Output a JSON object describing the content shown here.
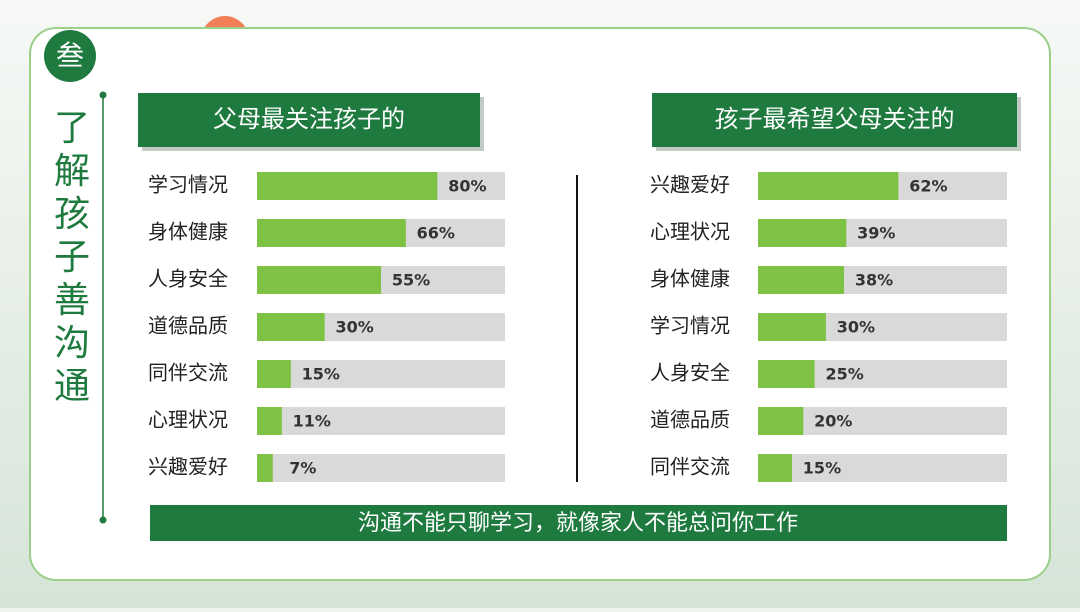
{
  "badge": "叁",
  "side_title": "了解孩子善沟通",
  "footer": "沟通不能只聊学习，就像家人不能总问你工作",
  "chart_data": [
    {
      "type": "hbar",
      "title": "父母最关注孩子的",
      "categories": [
        "学习情况",
        "身体健康",
        "人身安全",
        "道德品质",
        "同伴交流",
        "心理状况",
        "兴趣爱好"
      ],
      "values": [
        80,
        66,
        55,
        30,
        15,
        11,
        7
      ],
      "value_labels": [
        "80%",
        "66%",
        "55%",
        "30%",
        "15%",
        "11%",
        "7%"
      ],
      "color": "#7dc242",
      "xlim": [
        0,
        110
      ]
    },
    {
      "type": "hbar",
      "title": "孩子最希望父母关注的",
      "categories": [
        "兴趣爱好",
        "心理状况",
        "身体健康",
        "学习情况",
        "人身安全",
        "道德品质",
        "同伴交流"
      ],
      "values": [
        62,
        39,
        38,
        30,
        25,
        20,
        15
      ],
      "value_labels": [
        "62%",
        "39%",
        "38%",
        "30%",
        "25%",
        "20%",
        "15%"
      ],
      "color": "#7dc242",
      "xlim": [
        0,
        110
      ]
    }
  ]
}
